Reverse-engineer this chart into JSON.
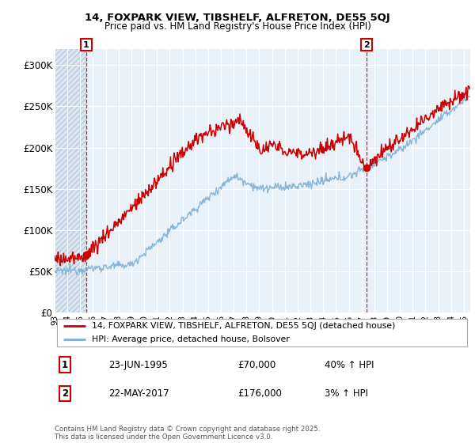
{
  "title1": "14, FOXPARK VIEW, TIBSHELF, ALFRETON, DE55 5QJ",
  "title2": "Price paid vs. HM Land Registry's House Price Index (HPI)",
  "legend1": "14, FOXPARK VIEW, TIBSHELF, ALFRETON, DE55 5QJ (detached house)",
  "legend2": "HPI: Average price, detached house, Bolsover",
  "footnote": "Contains HM Land Registry data © Crown copyright and database right 2025.\nThis data is licensed under the Open Government Licence v3.0.",
  "marker1_date": "23-JUN-1995",
  "marker1_price": 70000,
  "marker1_label": "40% ↑ HPI",
  "marker2_date": "22-MAY-2017",
  "marker2_price": 176000,
  "marker2_label": "3% ↑ HPI",
  "ylim": [
    0,
    320000
  ],
  "xlim": [
    1993.0,
    2025.5
  ],
  "yticks": [
    0,
    50000,
    100000,
    150000,
    200000,
    250000,
    300000
  ],
  "ytick_labels": [
    "£0",
    "£50K",
    "£100K",
    "£150K",
    "£200K",
    "£250K",
    "£300K"
  ],
  "xtick_years": [
    1993,
    1994,
    1995,
    1996,
    1997,
    1998,
    1999,
    2000,
    2001,
    2002,
    2003,
    2004,
    2005,
    2006,
    2007,
    2008,
    2009,
    2010,
    2011,
    2012,
    2013,
    2014,
    2015,
    2016,
    2017,
    2018,
    2019,
    2020,
    2021,
    2022,
    2023,
    2024,
    2025
  ],
  "red_color": "#cc0000",
  "blue_color": "#7ab0d4",
  "hatch_color": "#dce6f0",
  "plot_bg": "#e8f0f8",
  "grid_color": "#ffffff",
  "marker1_x": 1995.48,
  "marker2_x": 2017.39
}
